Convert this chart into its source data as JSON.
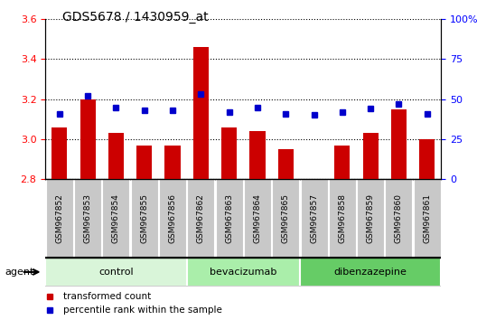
{
  "title": "GDS5678 / 1430959_at",
  "samples": [
    "GSM967852",
    "GSM967853",
    "GSM967854",
    "GSM967855",
    "GSM967856",
    "GSM967862",
    "GSM967863",
    "GSM967864",
    "GSM967865",
    "GSM967857",
    "GSM967858",
    "GSM967859",
    "GSM967860",
    "GSM967861"
  ],
  "transformed_counts": [
    3.06,
    3.2,
    3.03,
    2.97,
    2.97,
    3.46,
    3.06,
    3.04,
    2.95,
    2.8,
    2.97,
    3.03,
    3.15,
    3.0
  ],
  "percentile_ranks": [
    41,
    52,
    45,
    43,
    43,
    53,
    42,
    45,
    41,
    40,
    42,
    44,
    47,
    41
  ],
  "groups": [
    {
      "name": "control",
      "start": 0,
      "end": 5,
      "color": "#d9f5d9"
    },
    {
      "name": "bevacizumab",
      "start": 5,
      "end": 9,
      "color": "#aaeeaa"
    },
    {
      "name": "dibenzazepine",
      "start": 9,
      "end": 14,
      "color": "#66cc66"
    }
  ],
  "ylim_left": [
    2.8,
    3.6
  ],
  "ylim_right": [
    0,
    100
  ],
  "yticks_left": [
    2.8,
    3.0,
    3.2,
    3.4,
    3.6
  ],
  "yticks_right": [
    0,
    25,
    50,
    75,
    100
  ],
  "bar_color": "#cc0000",
  "dot_color": "#0000cc",
  "agent_label": "agent",
  "legend_bar": "transformed count",
  "legend_dot": "percentile rank within the sample",
  "sample_box_color": "#c8c8c8"
}
